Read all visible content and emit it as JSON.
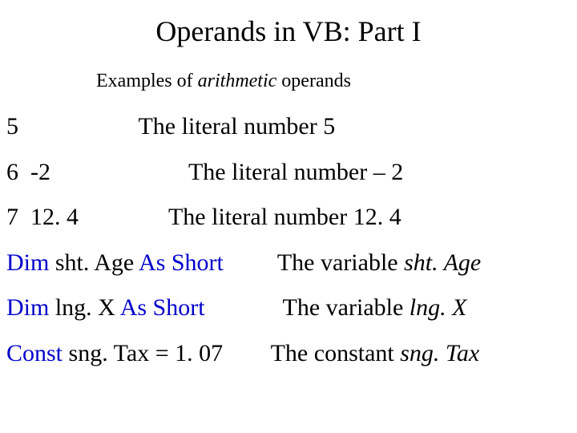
{
  "title": "Operands in VB:  Part I",
  "subtitle_prefix": "Examples of ",
  "subtitle_italic": "arithmetic",
  "subtitle_suffix": " operands",
  "colors": {
    "text": "#000000",
    "keyword": "#0000cc",
    "background": "#ffffff"
  },
  "typography": {
    "title_fontsize": 36,
    "subtitle_fontsize": 24,
    "row_fontsize": 30,
    "font_family": "Times New Roman"
  },
  "rows": [
    {
      "lhs_plain": "5",
      "rhs_pad": "                    ",
      "rhs_text": "The literal number 5",
      "rhs_italic": ""
    },
    {
      "lhs_plain": "6  -2",
      "rhs_pad": "                       ",
      "rhs_text": "The literal number – 2",
      "rhs_italic": ""
    },
    {
      "lhs_plain": "7  12. 4",
      "rhs_pad": "               ",
      "rhs_text": "The literal number 12. 4",
      "rhs_italic": ""
    },
    {
      "lhs_kw1": "Dim",
      "lhs_mid": " sht. Age ",
      "lhs_kw2": "As Short",
      "rhs_pad": "         ",
      "rhs_text": "The variable ",
      "rhs_italic": "sht. Age"
    },
    {
      "lhs_kw1": "Dim",
      "lhs_mid": " lng. X ",
      "lhs_kw2": "As Short",
      "rhs_pad": "             ",
      "rhs_text": "The variable ",
      "rhs_italic": "lng. X"
    },
    {
      "lhs_kw1": "Const",
      "lhs_mid": " sng. Tax = 1. 07",
      "lhs_kw2": "",
      "rhs_pad": "        ",
      "rhs_text": "The constant ",
      "rhs_italic": "sng. Tax"
    }
  ]
}
